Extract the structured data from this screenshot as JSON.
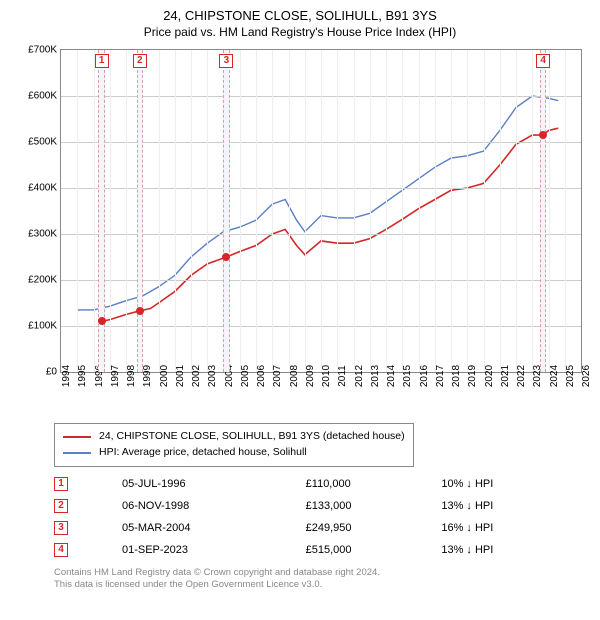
{
  "title": "24, CHIPSTONE CLOSE, SOLIHULL, B91 3YS",
  "subtitle": "Price paid vs. HM Land Registry's House Price Index (HPI)",
  "chart": {
    "type": "line",
    "background_color": "#ffffff",
    "grid_color_h": "#cccccc",
    "grid_color_v": "#eeeeee",
    "border_color": "#888888",
    "y_axis": {
      "min": 0,
      "max": 700000,
      "ticks": [
        0,
        100000,
        200000,
        300000,
        400000,
        500000,
        600000,
        700000
      ],
      "labels": [
        "£0",
        "£100K",
        "£200K",
        "£300K",
        "£400K",
        "£500K",
        "£600K",
        "£700K"
      ],
      "fontsize": 10
    },
    "x_axis": {
      "min": 1994,
      "max": 2026,
      "ticks": [
        1994,
        1995,
        1996,
        1997,
        1998,
        1999,
        2000,
        2001,
        2002,
        2003,
        2004,
        2005,
        2006,
        2007,
        2008,
        2009,
        2010,
        2011,
        2012,
        2013,
        2014,
        2015,
        2016,
        2017,
        2018,
        2019,
        2020,
        2021,
        2022,
        2023,
        2024,
        2025,
        2026
      ],
      "labels": [
        "1994",
        "1995",
        "1996",
        "1997",
        "1998",
        "1999",
        "2000",
        "2001",
        "2002",
        "2003",
        "2004",
        "2005",
        "2006",
        "2007",
        "2008",
        "2009",
        "2010",
        "2011",
        "2012",
        "2013",
        "2014",
        "2015",
        "2016",
        "2017",
        "2018",
        "2019",
        "2020",
        "2021",
        "2022",
        "2023",
        "2024",
        "2025",
        "2026"
      ],
      "fontsize": 10
    },
    "marker_band": {
      "fill": "#f4f4fb",
      "dash_color": "#d6a0a0",
      "width_years": 0.4
    },
    "series": [
      {
        "name": "HPI: Average price, detached house, Solihull",
        "color": "#5a7fc4",
        "width": 1.4,
        "points": [
          [
            1995.0,
            135000
          ],
          [
            1996.0,
            135000
          ],
          [
            1997.0,
            143000
          ],
          [
            1998.0,
            155000
          ],
          [
            1999.0,
            165000
          ],
          [
            2000.0,
            185000
          ],
          [
            2001.0,
            210000
          ],
          [
            2002.0,
            250000
          ],
          [
            2003.0,
            280000
          ],
          [
            2004.0,
            305000
          ],
          [
            2005.0,
            315000
          ],
          [
            2006.0,
            330000
          ],
          [
            2007.0,
            365000
          ],
          [
            2007.8,
            375000
          ],
          [
            2008.5,
            330000
          ],
          [
            2009.0,
            305000
          ],
          [
            2010.0,
            340000
          ],
          [
            2011.0,
            335000
          ],
          [
            2012.0,
            335000
          ],
          [
            2013.0,
            345000
          ],
          [
            2014.0,
            370000
          ],
          [
            2015.0,
            395000
          ],
          [
            2016.0,
            420000
          ],
          [
            2017.0,
            445000
          ],
          [
            2018.0,
            465000
          ],
          [
            2019.0,
            470000
          ],
          [
            2020.0,
            480000
          ],
          [
            2021.0,
            525000
          ],
          [
            2022.0,
            575000
          ],
          [
            2023.0,
            600000
          ],
          [
            2024.0,
            595000
          ],
          [
            2024.6,
            590000
          ]
        ]
      },
      {
        "name": "24, CHIPSTONE CLOSE, SOLIHULL, B91 3YS (detached house)",
        "color": "#d62728",
        "width": 1.6,
        "points": [
          [
            1996.5,
            110000
          ],
          [
            1997.0,
            114000
          ],
          [
            1998.0,
            125000
          ],
          [
            1998.85,
            133000
          ],
          [
            1999.5,
            138000
          ],
          [
            2000.0,
            150000
          ],
          [
            2001.0,
            175000
          ],
          [
            2002.0,
            210000
          ],
          [
            2003.0,
            235000
          ],
          [
            2004.18,
            249950
          ],
          [
            2005.0,
            262000
          ],
          [
            2006.0,
            275000
          ],
          [
            2007.0,
            300000
          ],
          [
            2007.8,
            310000
          ],
          [
            2008.5,
            275000
          ],
          [
            2009.0,
            255000
          ],
          [
            2010.0,
            285000
          ],
          [
            2011.0,
            280000
          ],
          [
            2012.0,
            280000
          ],
          [
            2013.0,
            290000
          ],
          [
            2014.0,
            310000
          ],
          [
            2015.0,
            332000
          ],
          [
            2016.0,
            355000
          ],
          [
            2017.0,
            375000
          ],
          [
            2018.0,
            395000
          ],
          [
            2019.0,
            400000
          ],
          [
            2020.0,
            410000
          ],
          [
            2021.0,
            450000
          ],
          [
            2022.0,
            495000
          ],
          [
            2023.0,
            515000
          ],
          [
            2023.67,
            515000
          ],
          [
            2024.0,
            525000
          ],
          [
            2024.6,
            530000
          ]
        ]
      }
    ],
    "sale_markers": [
      {
        "n": 1,
        "x": 1996.5,
        "y": 110000,
        "color": "#d62728"
      },
      {
        "n": 2,
        "x": 1998.85,
        "y": 133000,
        "color": "#d62728"
      },
      {
        "n": 3,
        "x": 2004.18,
        "y": 249950,
        "color": "#d62728"
      },
      {
        "n": 4,
        "x": 2023.67,
        "y": 515000,
        "color": "#d62728"
      }
    ]
  },
  "legend": {
    "items": [
      {
        "color": "#d62728",
        "label": "24, CHIPSTONE CLOSE, SOLIHULL, B91 3YS (detached house)"
      },
      {
        "color": "#5a7fc4",
        "label": "HPI: Average price, detached house, Solihull"
      }
    ]
  },
  "sales_table": {
    "rows": [
      {
        "n": "1",
        "date": "05-JUL-1996",
        "price": "£110,000",
        "delta": "10% ↓ HPI"
      },
      {
        "n": "2",
        "date": "06-NOV-1998",
        "price": "£133,000",
        "delta": "13% ↓ HPI"
      },
      {
        "n": "3",
        "date": "05-MAR-2004",
        "price": "£249,950",
        "delta": "16% ↓ HPI"
      },
      {
        "n": "4",
        "date": "01-SEP-2023",
        "price": "£515,000",
        "delta": "13% ↓ HPI"
      }
    ],
    "badge_color": "#d62728"
  },
  "footer": {
    "line1": "Contains HM Land Registry data © Crown copyright and database right 2024.",
    "line2": "This data is licensed under the Open Government Licence v3.0."
  }
}
